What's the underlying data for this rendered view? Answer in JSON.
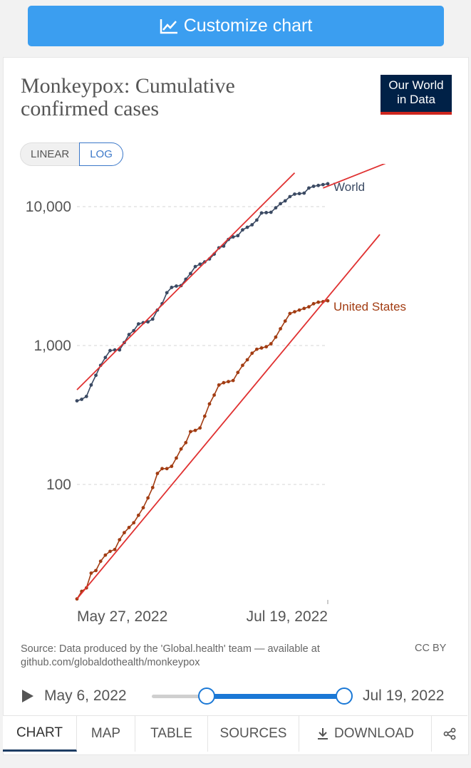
{
  "header": {
    "customize_label": "Customize chart"
  },
  "chart": {
    "title": "Monkeypox: Cumulative confirmed cases",
    "logo": {
      "line1": "Our World",
      "line2": "in Data"
    },
    "scale_toggle": {
      "linear": "LINEAR",
      "log": "LOG",
      "active": "LOG"
    },
    "source": "Source: Data produced by the 'Global.health' team — available at github.com/globaldothealth/monkeypox",
    "license": "CC BY"
  },
  "chart_data": {
    "type": "line",
    "yscale": "log",
    "ylim": [
      14,
      20000
    ],
    "xlim": [
      0,
      53
    ],
    "y_ticks": [
      {
        "value": 100,
        "label": "100"
      },
      {
        "value": 1000,
        "label": "1,000"
      },
      {
        "value": 10000,
        "label": "10,000"
      }
    ],
    "x_ticks": [
      {
        "day": 0,
        "label": "May 27, 2022"
      },
      {
        "day": 53,
        "label": "Jul 19, 2022"
      }
    ],
    "x_start_label": "May 27, 2022",
    "series": [
      {
        "name": "World",
        "color": "#3b4a63",
        "days": [
          0,
          1,
          2,
          3,
          4,
          5,
          6,
          7,
          8,
          9,
          10,
          11,
          12,
          13,
          14,
          15,
          16,
          17,
          18,
          19,
          20,
          21,
          22,
          23,
          24,
          25,
          26,
          27,
          28,
          29,
          30,
          31,
          32,
          33,
          34,
          35,
          36,
          37,
          38,
          39,
          40,
          41,
          42,
          43,
          44,
          45,
          46,
          47,
          48,
          49,
          50,
          51,
          52,
          53
        ],
        "values": [
          400,
          410,
          430,
          520,
          610,
          720,
          820,
          920,
          930,
          930,
          1050,
          1200,
          1280,
          1430,
          1460,
          1480,
          1550,
          1800,
          2000,
          2400,
          2620,
          2680,
          2700,
          3000,
          3300,
          3700,
          3850,
          4000,
          4200,
          4550,
          5050,
          5200,
          5800,
          6050,
          6180,
          6800,
          7100,
          7400,
          8000,
          9000,
          9050,
          9100,
          9800,
          10500,
          11000,
          11800,
          12300,
          12400,
          12500,
          13600,
          14000,
          14200,
          14400,
          14600
        ]
      },
      {
        "name": "United States",
        "color": "#a23c12",
        "days": [
          0,
          1,
          2,
          3,
          4,
          5,
          6,
          7,
          8,
          9,
          10,
          11,
          12,
          13,
          14,
          15,
          16,
          17,
          18,
          19,
          20,
          21,
          22,
          23,
          24,
          25,
          26,
          27,
          28,
          29,
          30,
          31,
          32,
          33,
          34,
          35,
          36,
          37,
          38,
          39,
          40,
          41,
          42,
          43,
          44,
          45,
          46,
          47,
          48,
          49,
          50,
          51,
          52,
          53
        ],
        "values": [
          15,
          17,
          18,
          23,
          24,
          28,
          31,
          33,
          34,
          40,
          45,
          49,
          53,
          60,
          68,
          80,
          95,
          120,
          130,
          130,
          135,
          155,
          180,
          200,
          240,
          245,
          255,
          310,
          380,
          440,
          520,
          540,
          550,
          560,
          640,
          720,
          790,
          880,
          940,
          960,
          980,
          1030,
          1150,
          1320,
          1500,
          1700,
          1750,
          1800,
          1850,
          1900,
          2000,
          2050,
          2070,
          2100
        ]
      }
    ],
    "trend_lines": [
      {
        "name": "World trend",
        "color": "#e03131",
        "days": [
          0,
          46
        ],
        "values": [
          480,
          17500
        ]
      },
      {
        "name": "United States trend",
        "color": "#e03131",
        "days": [
          0,
          64
        ],
        "values": [
          15,
          6300
        ]
      },
      {
        "name": "World extended trend",
        "color": "#e03131",
        "days": [
          52,
          66
        ],
        "values": [
          13600,
          21000
        ]
      }
    ],
    "xlabel": "",
    "ylabel": ""
  },
  "timeline": {
    "start_label": "May 6, 2022",
    "end_label": "Jul 19, 2022"
  },
  "tabs": {
    "chart": "CHART",
    "map": "MAP",
    "table": "TABLE",
    "sources": "SOURCES",
    "download": "DOWNLOAD"
  }
}
